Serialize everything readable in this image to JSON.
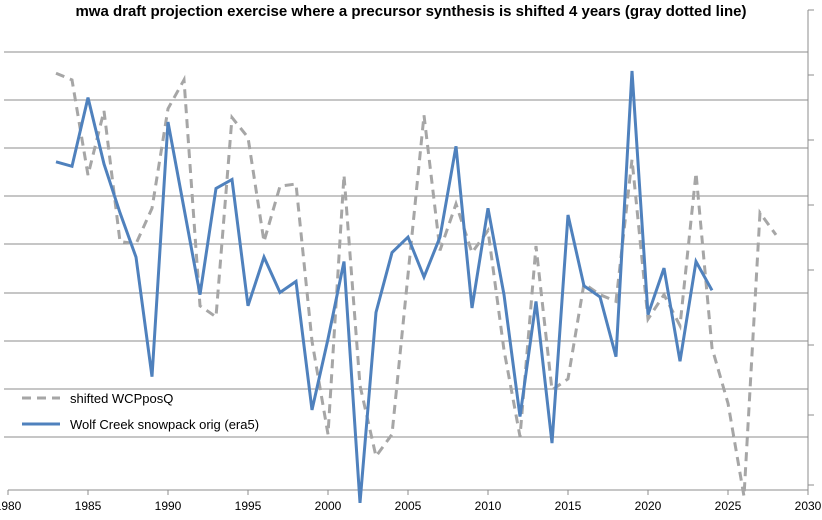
{
  "chart_data": {
    "type": "line",
    "title": "mwa draft projection exercise where a precursor synthesis is shifted 4 years (gray dotted line)",
    "xlabel": "",
    "ylabel": "",
    "xlim": [
      1980,
      2030
    ],
    "xticks": [
      "1980",
      "1985",
      "1990",
      "1995",
      "2000",
      "2005",
      "2010",
      "2015",
      "2020",
      "2025",
      "2030"
    ],
    "ylim": [
      0,
      10
    ],
    "grid": "horizontal",
    "legend_position": "bottom-left",
    "series": [
      {
        "name": "shifted WCPposQ",
        "style": "dashed",
        "color": "#A6A6A6",
        "x": [
          1983,
          1984,
          1985,
          1986,
          1987,
          1988,
          1989,
          1990,
          1991,
          1992,
          1993,
          1994,
          1995,
          1996,
          1997,
          1998,
          1999,
          2000,
          2001,
          2002,
          2003,
          2004,
          2005,
          2006,
          2007,
          2008,
          2009,
          2010,
          2011,
          2012,
          2013,
          2014,
          2015,
          2016,
          2017,
          2018,
          2019,
          2020,
          2021,
          2022,
          2023,
          2024,
          2025,
          2026,
          2027,
          2028
        ],
        "y": [
          9.25,
          9.1,
          6.95,
          8.4,
          5.45,
          5.4,
          6.2,
          8.45,
          9.1,
          4.0,
          3.75,
          8.25,
          7.8,
          5.45,
          6.7,
          6.75,
          3.2,
          1.1,
          6.95,
          2.2,
          0.6,
          1.1,
          4.7,
          8.3,
          5.25,
          6.3,
          5.2,
          5.7,
          3.0,
          1.05,
          5.35,
          2.1,
          2.35,
          4.5,
          4.25,
          4.1,
          7.3,
          3.7,
          4.25,
          3.55,
          7.0,
          3.05,
          1.8,
          -0.3,
          6.1,
          5.6
        ]
      },
      {
        "name": "Wolf Creek snowpack orig (era5)",
        "style": "solid",
        "color": "#4F81BD",
        "x": [
          1983,
          1984,
          1985,
          1986,
          1987,
          1988,
          1989,
          1990,
          1991,
          1992,
          1993,
          1994,
          1995,
          1996,
          1997,
          1998,
          1999,
          2000,
          2001,
          2002,
          2003,
          2004,
          2005,
          2006,
          2007,
          2008,
          2009,
          2010,
          2011,
          2012,
          2013,
          2014,
          2015,
          2016,
          2017,
          2018,
          2019,
          2020,
          2021,
          2022,
          2023,
          2024
        ],
        "y": [
          7.25,
          7.15,
          8.7,
          7.2,
          6.1,
          5.1,
          2.4,
          8.15,
          6.2,
          4.25,
          6.65,
          6.85,
          4.0,
          5.1,
          4.3,
          4.55,
          1.65,
          3.25,
          5.0,
          -0.45,
          3.85,
          5.2,
          5.55,
          4.65,
          5.55,
          7.6,
          3.95,
          6.2,
          4.25,
          1.5,
          4.1,
          0.9,
          6.05,
          4.45,
          4.2,
          2.85,
          9.3,
          3.8,
          4.85,
          2.75,
          5.0,
          4.35
        ]
      }
    ]
  },
  "legend": {
    "items": [
      {
        "label": "shifted WCPposQ",
        "color": "#A6A6A6",
        "style": "dashed"
      },
      {
        "label": "Wolf Creek snowpack orig (era5)",
        "color": "#4F81BD",
        "style": "solid"
      }
    ]
  }
}
